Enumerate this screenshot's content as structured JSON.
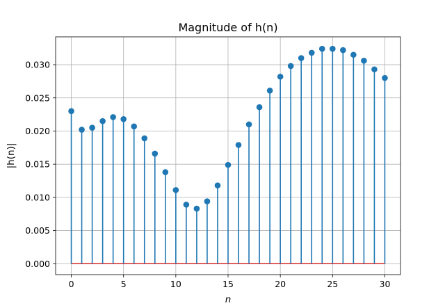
{
  "chart_data": {
    "type": "stem",
    "title": "Magnitude of h(n)",
    "xlabel": "n",
    "ylabel": "|h(n)|",
    "xlim": [
      -1.5,
      31.5
    ],
    "ylim": [
      -0.00165,
      0.0342
    ],
    "xticks": [
      0,
      5,
      10,
      15,
      20,
      25,
      30
    ],
    "xtick_labels": [
      "0",
      "5",
      "10",
      "15",
      "20",
      "25",
      "30"
    ],
    "yticks": [
      0.0,
      0.005,
      0.01,
      0.015,
      0.02,
      0.025,
      0.03
    ],
    "ytick_labels": [
      "0.000",
      "0.005",
      "0.010",
      "0.015",
      "0.020",
      "0.025",
      "0.030"
    ],
    "grid": true,
    "x": [
      0,
      1,
      2,
      3,
      4,
      5,
      6,
      7,
      8,
      9,
      10,
      11,
      12,
      13,
      14,
      15,
      16,
      17,
      18,
      19,
      20,
      21,
      22,
      23,
      24,
      25,
      26,
      27,
      28,
      29,
      30
    ],
    "values": [
      0.023,
      0.0202,
      0.0205,
      0.0215,
      0.0221,
      0.0218,
      0.0207,
      0.0189,
      0.0166,
      0.0138,
      0.0111,
      0.0089,
      0.0083,
      0.0094,
      0.0118,
      0.0149,
      0.0179,
      0.021,
      0.0236,
      0.0261,
      0.0282,
      0.0298,
      0.031,
      0.0318,
      0.0324,
      0.0324,
      0.0322,
      0.0315,
      0.0306,
      0.0293,
      0.028
    ],
    "colors": {
      "stem": "#1f77b4",
      "marker": "#1f77b4",
      "baseline": "#d62728"
    }
  }
}
